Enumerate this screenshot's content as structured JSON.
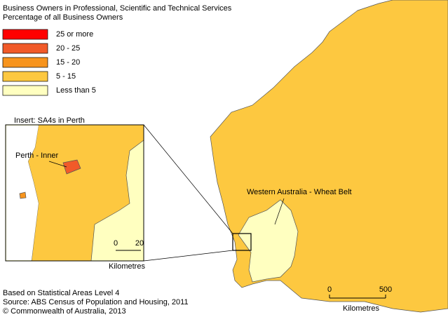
{
  "title": [
    "Business Owners in Professional, Scientific and Technical Services",
    "Percentage of all Business Owners"
  ],
  "legend": {
    "items": [
      {
        "label": "25 or more",
        "color": "#ff0000"
      },
      {
        "label": "20 - 25",
        "color": "#f15a29"
      },
      {
        "label": "15 - 20",
        "color": "#f7941d"
      },
      {
        "label": " 5 - 15",
        "color": "#fdc840"
      },
      {
        "label": "Less than 5",
        "color": "#ffffc0"
      }
    ]
  },
  "inset": {
    "title": "Insert: SA4s in Perth",
    "region_label": "Perth - Inner",
    "scale": {
      "ticks": [
        0,
        20
      ],
      "unit": "Kilometres"
    }
  },
  "map": {
    "region_label": "Western Australia - Wheat Belt",
    "scale": {
      "ticks": [
        0,
        500
      ],
      "unit": "Kilometres"
    }
  },
  "footer": [
    "Based on Statistical Areas Level 4",
    "Source: ABS Census of Population and Housing, 2011",
    "© Commonwealth of Australia, 2013"
  ]
}
